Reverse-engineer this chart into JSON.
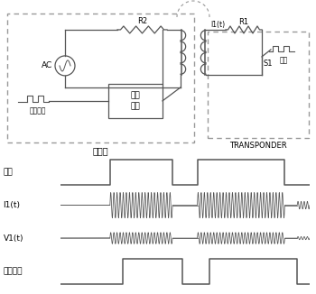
{
  "line_color": "#555555",
  "dash_color": "#999999",
  "wave_color": "#555555",
  "reader_label": "讀卡機",
  "transponder_label": "TRANSPONDER",
  "ac_label": "AC",
  "r2_label": "R2",
  "r1_label": "R1",
  "i1_label": "I1(t)",
  "s1_label": "S1",
  "signal_proc_label": "信號\n處理",
  "data_out_small_label": "資料輸出",
  "data_small_label": "資料",
  "signal_labels": [
    "資料",
    "I1(t)",
    "V1(t)",
    "資料輸出"
  ],
  "fig_width": 3.5,
  "fig_height": 3.26,
  "dpi": 100
}
